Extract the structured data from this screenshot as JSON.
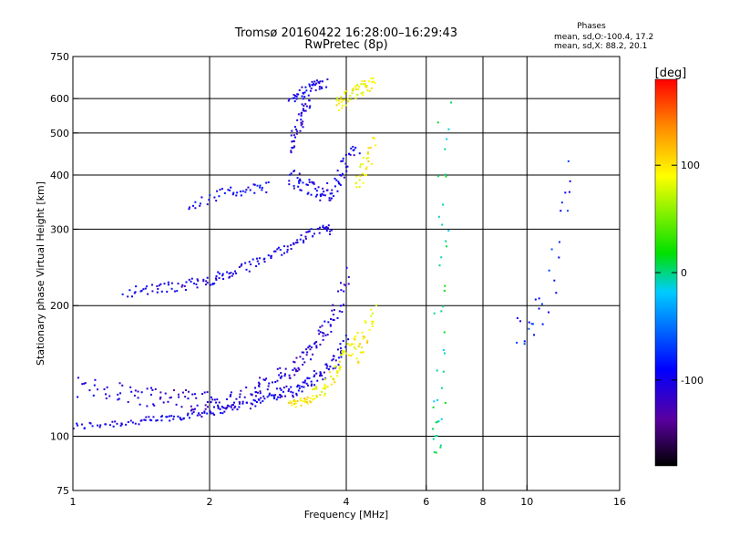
{
  "chart_data": {
    "type": "scatter",
    "title": "Tromsø 20160422 16:28:00–16:29:43",
    "subtitle": "RwPretec (8p)",
    "xlabel": "Frequency [MHz]",
    "ylabel": "Stationary phase Virtual Height [km]",
    "x_scale": "log2",
    "y_scale": "log",
    "xlim": [
      1,
      16
    ],
    "ylim": [
      75,
      750
    ],
    "x_ticks": [
      {
        "value": 1,
        "label": "1"
      },
      {
        "value": 2,
        "label": "2"
      },
      {
        "value": 4,
        "label": "4"
      },
      {
        "value": 6,
        "label": "6"
      },
      {
        "value": 8,
        "label": "8"
      },
      {
        "value": 10,
        "label": "10"
      },
      {
        "value": 16,
        "label": "16"
      }
    ],
    "y_ticks": [
      {
        "value": 75,
        "label": "75"
      },
      {
        "value": 100,
        "label": "100"
      },
      {
        "value": 200,
        "label": "200"
      },
      {
        "value": 300,
        "label": "300"
      },
      {
        "value": 400,
        "label": "400"
      },
      {
        "value": 500,
        "label": "500"
      },
      {
        "value": 600,
        "label": "600"
      },
      {
        "value": 750,
        "label": "750"
      }
    ],
    "x_grid": [
      2,
      4,
      6,
      8,
      10
    ],
    "y_grid": [
      100,
      200,
      300,
      400,
      500,
      600
    ],
    "grid": true,
    "legend": {
      "title": "Phases",
      "lines": [
        "mean, sd,O:-100.4, 17.2",
        "mean, sd,X: 88.2, 20.1"
      ]
    },
    "colorbar": {
      "label": "[deg]",
      "min": -180,
      "max": 180,
      "ticks": [
        {
          "value": 100,
          "label": "100"
        },
        {
          "value": 0,
          "label": "0"
        },
        {
          "value": -100,
          "label": "-100"
        }
      ]
    },
    "traces": [
      {
        "x": [
          1.0,
          1.2,
          1.4,
          1.6,
          1.8,
          2.0,
          2.2,
          2.5,
          2.8
        ],
        "y": [
          105,
          107,
          108,
          110,
          112,
          114,
          116,
          120,
          125
        ],
        "phase": -100,
        "spread": 0.03
      },
      {
        "x": [
          2.8,
          3.0,
          3.2,
          3.4,
          3.6,
          3.8,
          4.0
        ],
        "y": [
          125,
          127,
          130,
          135,
          142,
          150,
          165
        ],
        "phase": -100,
        "spread": 0.05
      },
      {
        "x": [
          1.0,
          1.2,
          1.4,
          1.6,
          1.8,
          2.0,
          2.2,
          2.4,
          2.6
        ],
        "y": [
          130,
          128,
          125,
          123,
          122,
          121,
          120,
          122,
          125
        ],
        "phase": -110,
        "spread": 0.08
      },
      {
        "x": [
          2.5,
          2.8,
          3.0,
          3.2,
          3.4,
          3.6,
          3.8,
          4.0
        ],
        "y": [
          130,
          135,
          140,
          150,
          160,
          175,
          195,
          235
        ],
        "phase": -110,
        "spread": 0.07
      },
      {
        "x": [
          3.4,
          3.6,
          3.8,
          4.0,
          4.2
        ],
        "y": [
          125,
          130,
          140,
          155,
          170
        ],
        "phase": 90,
        "spread": 0.05
      },
      {
        "x": [
          3.0,
          3.2,
          3.4
        ],
        "y": [
          118,
          120,
          122
        ],
        "phase": 100,
        "spread": 0.03
      },
      {
        "x": [
          4.2,
          4.4,
          4.6
        ],
        "y": [
          150,
          170,
          195
        ],
        "phase": 95,
        "spread": 0.06
      },
      {
        "x": [
          1.3,
          1.5,
          1.7,
          1.9,
          2.1,
          2.3,
          2.6,
          2.9,
          3.2,
          3.5,
          3.7
        ],
        "y": [
          215,
          218,
          222,
          226,
          232,
          240,
          255,
          270,
          285,
          300,
          300
        ],
        "phase": -100,
        "spread": 0.04
      },
      {
        "x": [
          1.8,
          2.1,
          2.4,
          2.7
        ],
        "y": [
          340,
          360,
          370,
          375
        ],
        "phase": -95,
        "spread": 0.04
      },
      {
        "x": [
          3.0,
          3.2,
          3.4,
          3.6,
          3.8,
          4.0,
          4.2
        ],
        "y": [
          400,
          380,
          370,
          360,
          380,
          420,
          460
        ],
        "phase": -100,
        "spread": 0.06
      },
      {
        "x": [
          3.0,
          3.2,
          3.4,
          3.6
        ],
        "y": [
          600,
          620,
          640,
          650
        ],
        "phase": -100,
        "spread": 0.04
      },
      {
        "x": [
          3.0,
          3.1,
          3.2,
          3.3
        ],
        "y": [
          450,
          500,
          550,
          600
        ],
        "phase": -105,
        "spread": 0.06
      },
      {
        "x": [
          3.8,
          4.0,
          4.2,
          4.4,
          4.6
        ],
        "y": [
          580,
          600,
          620,
          640,
          650
        ],
        "phase": 90,
        "spread": 0.05
      },
      {
        "x": [
          4.2,
          4.4,
          4.6
        ],
        "y": [
          380,
          420,
          470
        ],
        "phase": 95,
        "spread": 0.06
      },
      {
        "x": [
          6.3,
          6.4,
          6.5,
          6.6
        ],
        "y": [
          90,
          120,
          250,
          560
        ],
        "phase": 0,
        "spread": 0.1
      },
      {
        "x": [
          9.5,
          11.0,
          12.5
        ],
        "y": [
          170,
          200,
          430
        ],
        "phase": -80,
        "spread": 0.1
      }
    ]
  }
}
